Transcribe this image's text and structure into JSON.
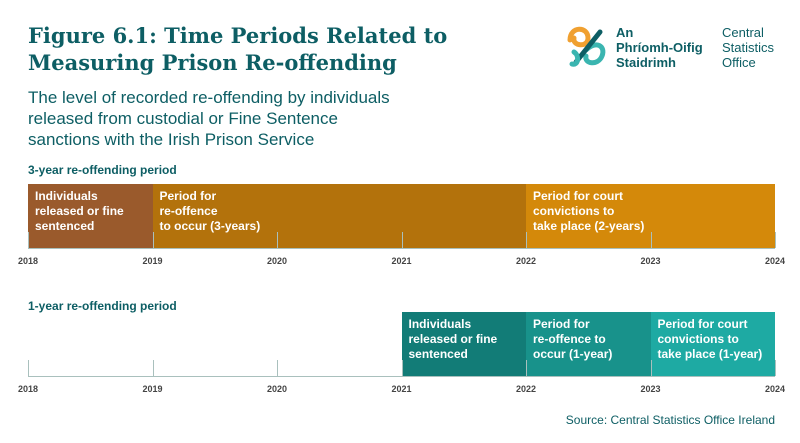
{
  "header": {
    "title_line1": "Figure 6.1: Time Periods Related to",
    "title_line2": "Measuring Prison Re-offending",
    "subtitle_line1": "The level of recorded re-offending by individuals",
    "subtitle_line2": "released from custodial or Fine Sentence",
    "subtitle_line3": "sanctions with the Irish Prison Service"
  },
  "logo": {
    "irish_line1": "An",
    "irish_line2": "Phríomh-Oifig",
    "irish_line3": "Staidrimh",
    "english_line1": "Central",
    "english_line2": "Statistics",
    "english_line3": "Office",
    "colors": {
      "orange": "#f0a030",
      "teal": "#3ab5b0",
      "dark": "#0d5e64"
    }
  },
  "sections": {
    "three_year": {
      "label": "3-year re-offending period",
      "segments": [
        {
          "lines": [
            "Individuals",
            "released or fine",
            "sentenced"
          ],
          "start": 2018,
          "end": 2019,
          "color": "#9a5a2c"
        },
        {
          "lines": [
            "Period for",
            "re-offence",
            "to occur (3-years)"
          ],
          "start": 2019,
          "end": 2022,
          "color": "#b3720c"
        },
        {
          "lines": [
            "Period for court",
            "convictions to",
            "take place (2-years)"
          ],
          "start": 2022,
          "end": 2024,
          "color": "#d4890a"
        }
      ]
    },
    "one_year": {
      "label": "1-year re-offending period",
      "segments": [
        {
          "lines": [
            "Individuals",
            "released or fine",
            "sentenced"
          ],
          "start": 2021,
          "end": 2022,
          "color": "#127c77"
        },
        {
          "lines": [
            "Period for",
            "re-offence to",
            "occur (1-year)"
          ],
          "start": 2022,
          "end": 2023,
          "color": "#18928b"
        },
        {
          "lines": [
            "Period for court",
            "convictions to",
            "take place (1-year)"
          ],
          "start": 2023,
          "end": 2024,
          "color": "#1eaaa3"
        }
      ]
    }
  },
  "axis": {
    "years": [
      "2018",
      "2019",
      "2020",
      "2021",
      "2022",
      "2023",
      "2024"
    ]
  },
  "source": "Source: Central Statistics Office Ireland"
}
